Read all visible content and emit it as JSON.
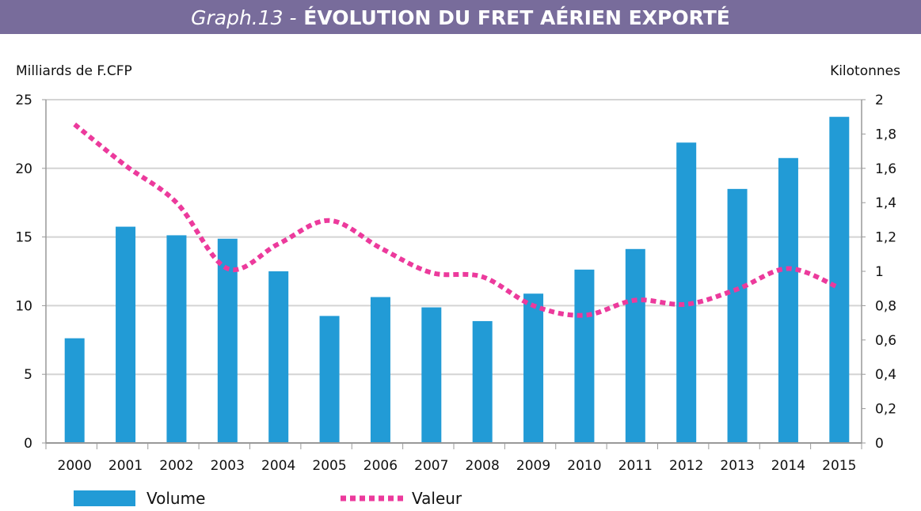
{
  "title": {
    "prefix": "Graph.13 -",
    "main": "ÉVOLUTION DU FRET AÉRIEN EXPORTÉ"
  },
  "chart_data": {
    "type": "bar+line",
    "title": "Graph.13 - ÉVOLUTION DU FRET AÉRIEN EXPORTÉ",
    "ylabel_left": "Milliards de F.CFP",
    "ylabel_right": "Kilotonnes",
    "ylim_left": [
      0,
      25
    ],
    "ylim_right": [
      0,
      2
    ],
    "yticks_left": [
      "0",
      "5",
      "10",
      "15",
      "20",
      "25"
    ],
    "yticks_right": [
      "0",
      "0,2",
      "0,4",
      "0,6",
      "0,8",
      "1",
      "1,2",
      "1,4",
      "1,6",
      "1,8",
      "2"
    ],
    "grid": true,
    "legend_position": "bottom",
    "categories": [
      "2000",
      "2001",
      "2002",
      "2003",
      "2004",
      "2005",
      "2006",
      "2007",
      "2008",
      "2009",
      "2010",
      "2011",
      "2012",
      "2013",
      "2014",
      "2015"
    ],
    "series": [
      {
        "name": "Volume",
        "type": "bar",
        "axis": "right",
        "color": "#229bd6",
        "values": [
          0.61,
          1.26,
          1.21,
          1.19,
          1.0,
          0.74,
          0.85,
          0.79,
          0.71,
          0.87,
          1.01,
          1.13,
          1.75,
          1.48,
          1.66,
          1.9
        ]
      },
      {
        "name": "Valeur",
        "type": "line",
        "style": "dotted",
        "axis": "left",
        "color": "#ec3a9c",
        "values": [
          23.2,
          20.2,
          17.5,
          12.7,
          14.5,
          16.2,
          14.2,
          12.4,
          12.1,
          10.0,
          9.3,
          10.4,
          10.1,
          11.2,
          12.7,
          11.3
        ]
      }
    ]
  }
}
